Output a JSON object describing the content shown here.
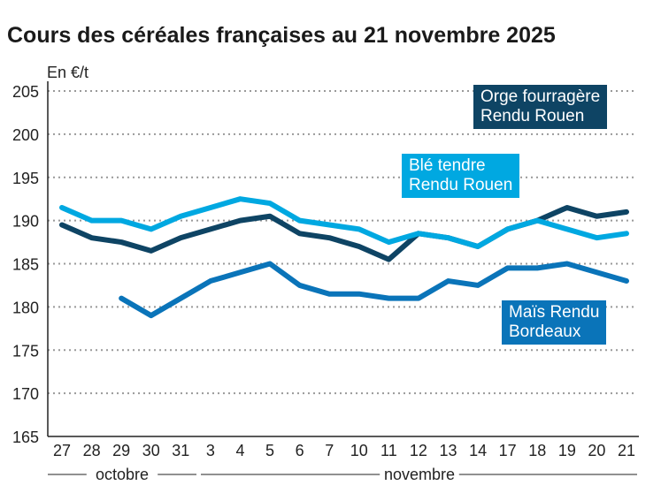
{
  "chart_data": {
    "type": "line",
    "title": "Cours des céréales françaises au 21 novembre 2025",
    "ylabel": "En €/t",
    "ylim": [
      165,
      205
    ],
    "yticks": [
      165,
      170,
      175,
      180,
      185,
      190,
      195,
      200,
      205
    ],
    "grid": true,
    "categories": [
      "27",
      "28",
      "29",
      "30",
      "31",
      "3",
      "4",
      "5",
      "6",
      "7",
      "10",
      "11",
      "12",
      "13",
      "14",
      "17",
      "18",
      "19",
      "20",
      "21"
    ],
    "months": [
      {
        "label": "octobre"
      },
      {
        "label": "novembre"
      }
    ],
    "series": [
      {
        "name": "Orge fourragère Rendu Rouen",
        "color": "#0e4464",
        "values": [
          189.5,
          188,
          187.5,
          186.5,
          188,
          189,
          190,
          190.5,
          188.5,
          188,
          187,
          185.5,
          188.5,
          188,
          187,
          189,
          190,
          191.5,
          190.5,
          191
        ]
      },
      {
        "name": "Blé tendre Rendu Rouen",
        "color": "#00a8e1",
        "values": [
          191.5,
          190,
          190,
          189,
          190.5,
          191.5,
          192.5,
          192,
          190,
          189.5,
          189,
          187.5,
          188.5,
          188,
          187,
          189,
          190,
          189,
          188,
          188.5
        ]
      },
      {
        "name": "Maïs Rendu Bordeaux",
        "color": "#0a74b9",
        "values": [
          null,
          null,
          181,
          179,
          181,
          183,
          184,
          185,
          182.5,
          181.5,
          181.5,
          181,
          181,
          183,
          182.5,
          184.5,
          184.5,
          185,
          184,
          183
        ]
      }
    ]
  }
}
